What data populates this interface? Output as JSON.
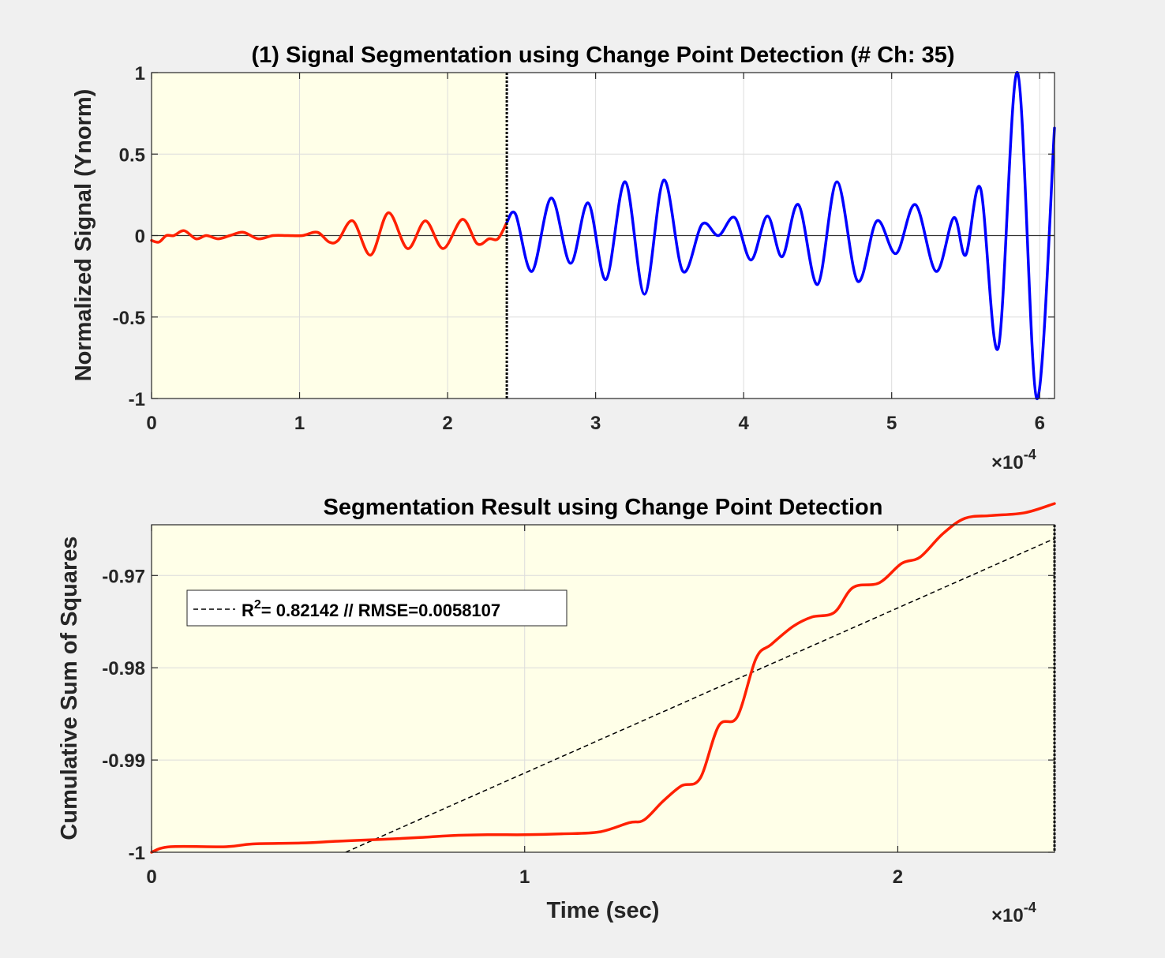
{
  "figure": {
    "background": "#f0f0f0"
  },
  "chart_data": [
    {
      "type": "line",
      "title": "(1) Signal Segmentation using Change Point Detection (# Ch: 35)",
      "xlabel": "",
      "ylabel": "Normalized Signal (Ynorm)",
      "xlim": [
        0,
        6.1
      ],
      "ylim": [
        -1,
        1
      ],
      "x_exponent_label": "×10",
      "x_exponent": "-4",
      "xticks": [
        0,
        1,
        2,
        3,
        4,
        5,
        6
      ],
      "xtick_labels": [
        "0",
        "1",
        "2",
        "3",
        "4",
        "5",
        "6"
      ],
      "yticks": [
        1,
        0.5,
        0,
        -0.5,
        -1
      ],
      "ytick_labels": [
        "1",
        "0.5",
        "0",
        "-0.5",
        "-1"
      ],
      "grid": true,
      "change_point": 2.4,
      "shaded_region": [
        0,
        2.4
      ],
      "shade_color": "#ffffe8",
      "zero_line": true,
      "series": [
        {
          "color": "#ff2000",
          "x": [
            0,
            0.05,
            0.1,
            0.15,
            0.22,
            0.3,
            0.37,
            0.45,
            0.53,
            0.62,
            0.72,
            0.82,
            0.92,
            1.02,
            1.12,
            1.2,
            1.26,
            1.36,
            1.48,
            1.6,
            1.73,
            1.85,
            1.97,
            2.1,
            2.2,
            2.28,
            2.34,
            2.4
          ],
          "y": [
            -0.03,
            -0.04,
            0.0,
            0.0,
            0.03,
            -0.02,
            0.0,
            -0.02,
            0.0,
            0.02,
            -0.02,
            0.0,
            0.0,
            0.0,
            0.02,
            -0.04,
            -0.03,
            0.09,
            -0.12,
            0.14,
            -0.08,
            0.09,
            -0.08,
            0.1,
            -0.05,
            -0.02,
            -0.02,
            0.08
          ]
        },
        {
          "color": "#0000ff",
          "x": [
            2.4,
            2.46,
            2.57,
            2.7,
            2.83,
            2.95,
            3.07,
            3.2,
            3.33,
            3.46,
            3.59,
            3.72,
            3.83,
            3.94,
            4.05,
            4.16,
            4.26,
            4.37,
            4.5,
            4.63,
            4.77,
            4.9,
            5.03,
            5.16,
            5.3,
            5.42,
            5.5,
            5.6,
            5.72,
            5.85,
            5.98,
            6.1
          ],
          "y": [
            0.08,
            0.13,
            -0.22,
            0.23,
            -0.17,
            0.2,
            -0.27,
            0.33,
            -0.36,
            0.34,
            -0.22,
            0.07,
            0.0,
            0.11,
            -0.15,
            0.12,
            -0.13,
            0.19,
            -0.3,
            0.33,
            -0.28,
            0.09,
            -0.11,
            0.19,
            -0.22,
            0.11,
            -0.12,
            0.29,
            -0.69,
            1.0,
            -1.0,
            0.66
          ]
        }
      ]
    },
    {
      "type": "line",
      "title": "Segmentation Result using Change Point Detection",
      "xlabel": "Time (sec)",
      "ylabel": "Cumulative Sum of Squares",
      "xlim": [
        0,
        2.42
      ],
      "ylim": [
        -1.0,
        -0.9645
      ],
      "x_exponent_label": "×10",
      "x_exponent": "-4",
      "xticks": [
        0,
        1,
        2
      ],
      "xtick_labels": [
        "0",
        "1",
        "2"
      ],
      "yticks": [
        -0.97,
        -0.98,
        -0.99,
        -1.0
      ],
      "ytick_labels": [
        "-0.97",
        "-0.98",
        "-0.99",
        "-1"
      ],
      "grid": true,
      "shade_color": "#ffffe8",
      "change_point": 2.42,
      "legend": {
        "placement": "top-left",
        "entries": [
          {
            "label_prefix": "R",
            "label_sup": "2",
            "label_rest": "= 0.82142 // RMSE=0.0058107",
            "style": "dashed",
            "color": "#000000"
          }
        ]
      },
      "series": [
        {
          "name": "",
          "color": "#ff2000",
          "x": [
            0,
            0.05,
            0.2,
            0.27,
            0.4,
            0.5,
            0.62,
            0.72,
            0.8,
            0.9,
            1.0,
            1.1,
            1.2,
            1.28,
            1.32,
            1.37,
            1.42,
            1.47,
            1.52,
            1.57,
            1.62,
            1.66,
            1.72,
            1.77,
            1.83,
            1.88,
            1.95,
            2.01,
            2.06,
            2.12,
            2.18,
            2.25,
            2.34,
            2.42
          ],
          "y": [
            -1.0,
            -0.9994,
            -0.9994,
            -0.9991,
            -0.999,
            -0.9988,
            -0.9986,
            -0.9984,
            -0.9982,
            -0.9981,
            -0.9981,
            -0.998,
            -0.9978,
            -0.9968,
            -0.9965,
            -0.9945,
            -0.9928,
            -0.992,
            -0.9863,
            -0.9853,
            -0.979,
            -0.9775,
            -0.9755,
            -0.9745,
            -0.974,
            -0.9713,
            -0.9708,
            -0.9687,
            -0.968,
            -0.9655,
            -0.9638,
            -0.9635,
            -0.9632,
            -0.9622
          ]
        }
      ],
      "fit_line": {
        "style": "dashed",
        "color": "#000000",
        "x": [
          0.52,
          2.42
        ],
        "y": [
          -1.0,
          -0.966
        ]
      }
    }
  ]
}
